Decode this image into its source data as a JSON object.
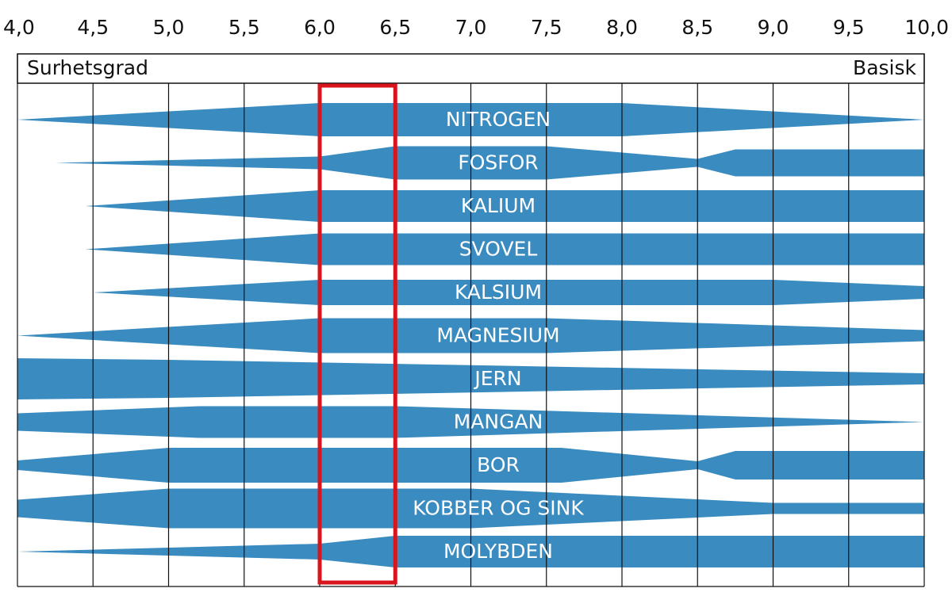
{
  "chart_data": {
    "type": "band",
    "acid_label": "Surhetsgrad",
    "basic_label": "Basisk",
    "xlim": [
      4.0,
      10.0
    ],
    "xticks": [
      {
        "value": 4.0,
        "label": "4,0"
      },
      {
        "value": 4.5,
        "label": "4,5"
      },
      {
        "value": 5.0,
        "label": "5,0"
      },
      {
        "value": 5.5,
        "label": "5,5"
      },
      {
        "value": 6.0,
        "label": "6,0"
      },
      {
        "value": 6.5,
        "label": "6,5"
      },
      {
        "value": 7.0,
        "label": "7,0"
      },
      {
        "value": 7.5,
        "label": "7,5"
      },
      {
        "value": 8.0,
        "label": "8,0"
      },
      {
        "value": 8.5,
        "label": "8,5"
      },
      {
        "value": 9.0,
        "label": "9,0"
      },
      {
        "value": 9.5,
        "label": "9,5"
      },
      {
        "value": 10.0,
        "label": "10,0"
      }
    ],
    "grid": true,
    "highlight": {
      "range": [
        6.0,
        6.5
      ],
      "color": "#d9141c"
    },
    "color": "#3a8bbf",
    "series": [
      {
        "name": "NITROGEN",
        "x": [
          4.0,
          6.0,
          8.0,
          10.0
        ],
        "values": [
          0,
          10.5,
          10.5,
          0
        ]
      },
      {
        "name": "FOSFOR",
        "x": [
          4.25,
          6.0,
          6.5,
          7.5,
          8.5,
          8.75,
          10.0
        ],
        "values": [
          0,
          4,
          10.5,
          10.5,
          2.5,
          8.5,
          8.5
        ]
      },
      {
        "name": "KALIUM",
        "x": [
          4.45,
          6.0,
          10.0
        ],
        "values": [
          0,
          10,
          10
        ]
      },
      {
        "name": "SVOVEL",
        "x": [
          4.45,
          6.0,
          10.0
        ],
        "values": [
          0,
          10,
          10
        ]
      },
      {
        "name": "KALSIUM",
        "x": [
          4.5,
          6.0,
          9.0,
          10.0
        ],
        "values": [
          0,
          8,
          8,
          4
        ]
      },
      {
        "name": "MAGNESIUM",
        "x": [
          4.0,
          6.0,
          7.5,
          10.0
        ],
        "values": [
          0,
          11,
          11,
          3.5
        ]
      },
      {
        "name": "JERN",
        "x": [
          4.0,
          5.0,
          10.0
        ],
        "values": [
          13,
          12,
          3.5
        ]
      },
      {
        "name": "MANGAN",
        "x": [
          4.0,
          5.2,
          6.5,
          10.0
        ],
        "values": [
          5.5,
          10,
          10,
          0
        ]
      },
      {
        "name": "BOR",
        "x": [
          4.0,
          5.0,
          7.6,
          8.5,
          8.75,
          10.0
        ],
        "values": [
          3,
          11,
          11,
          2.5,
          9,
          9
        ]
      },
      {
        "name": "KOBBER OG SINK",
        "x": [
          4.0,
          5.0,
          7.0,
          9.0,
          10.0
        ],
        "values": [
          5.5,
          12.5,
          12.5,
          3.5,
          3.5
        ]
      },
      {
        "name": "MOLYBDEN",
        "x": [
          4.0,
          6.0,
          6.5,
          10.0
        ],
        "values": [
          0,
          5,
          10,
          10
        ]
      }
    ]
  }
}
